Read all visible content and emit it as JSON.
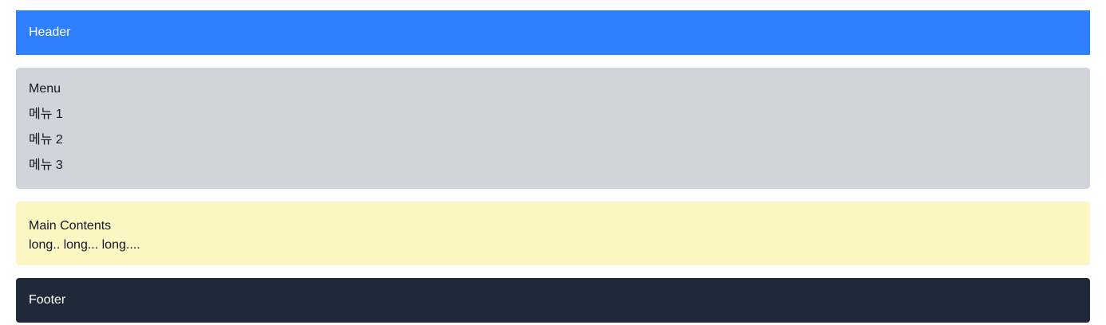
{
  "colors": {
    "header_bg": "#2f80ff",
    "menu_bg": "#d1d5db",
    "main_bg": "#fcf6c2",
    "footer_bg": "#1f2937"
  },
  "header": {
    "label": "Header"
  },
  "menu": {
    "title": "Menu",
    "items": [
      {
        "label": "메뉴 1"
      },
      {
        "label": "메뉴 2"
      },
      {
        "label": "메뉴 3"
      }
    ]
  },
  "main": {
    "title": "Main Contents",
    "text": "long.. long... long...."
  },
  "footer": {
    "label": "Footer"
  }
}
